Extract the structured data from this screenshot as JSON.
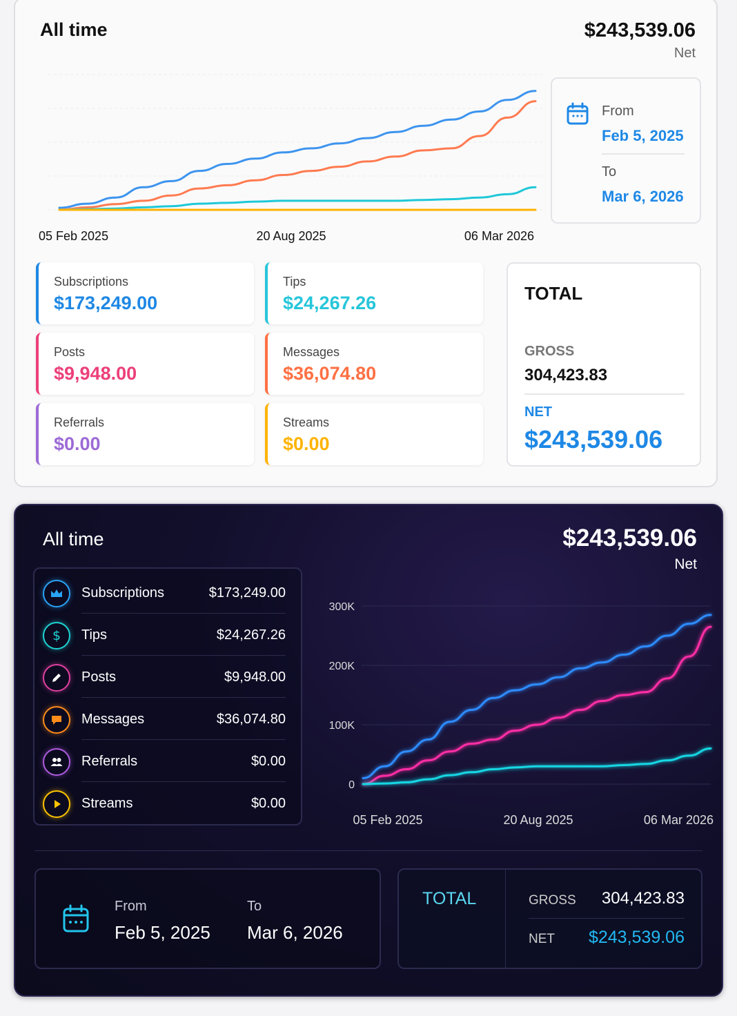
{
  "light": {
    "title": "All time",
    "net_amount": "$243,539.06",
    "net_label": "Net",
    "date_range": {
      "from_label": "From",
      "from_value": "Feb 5, 2025",
      "to_label": "To",
      "to_value": "Mar 6, 2026"
    },
    "stats": [
      {
        "label": "Subscriptions",
        "value": "$173,249.00",
        "color": "#1e88e5"
      },
      {
        "label": "Tips",
        "value": "$24,267.26",
        "color": "#26c6da"
      },
      {
        "label": "Posts",
        "value": "$9,948.00",
        "color": "#ec407a"
      },
      {
        "label": "Messages",
        "value": "$36,074.80",
        "color": "#ff7043"
      },
      {
        "label": "Referrals",
        "value": "$0.00",
        "color": "#9c6ad6"
      },
      {
        "label": "Streams",
        "value": "$0.00",
        "color": "#ffb300"
      }
    ],
    "total": {
      "title": "TOTAL",
      "gross_label": "GROSS",
      "gross_value": "304,423.83",
      "net_label": "NET",
      "net_value": "$243,539.06"
    }
  },
  "dark": {
    "title": "All time",
    "net_amount": "$243,539.06",
    "net_label": "Net",
    "items": [
      {
        "label": "Subscriptions",
        "value": "$173,249.00",
        "icon": "crown-icon",
        "color": "#29a3f5"
      },
      {
        "label": "Tips",
        "value": "$24,267.26",
        "icon": "dollar-icon",
        "color": "#1fd4d4"
      },
      {
        "label": "Posts",
        "value": "$9,948.00",
        "icon": "pencil-icon",
        "color": "#e040a0"
      },
      {
        "label": "Messages",
        "value": "$36,074.80",
        "icon": "chat-icon",
        "color": "#ff8c1a"
      },
      {
        "label": "Referrals",
        "value": "$0.00",
        "icon": "people-icon",
        "color": "#b05ce0"
      },
      {
        "label": "Streams",
        "value": "$0.00",
        "icon": "play-icon",
        "color": "#ffc400"
      }
    ],
    "date_range": {
      "from_label": "From",
      "from_value": "Feb 5, 2025",
      "to_label": "To",
      "to_value": "Mar 6, 2026"
    },
    "total": {
      "title": "TOTAL",
      "gross_label": "GROSS",
      "gross_value": "304,423.83",
      "net_label": "NET",
      "net_value": "$243,539.06"
    }
  },
  "chart_data": [
    {
      "type": "line",
      "xlabels": [
        "05 Feb 2025",
        "20 Aug 2025",
        "06 Mar 2026"
      ],
      "ylim": [
        0,
        330000
      ],
      "grid": true,
      "series": [
        {
          "color": "#3d94ee",
          "values": [
            5000,
            15000,
            30000,
            55000,
            70000,
            95000,
            112000,
            125000,
            140000,
            150000,
            162000,
            175000,
            190000,
            205000,
            220000,
            240000,
            268000,
            290000
          ]
        },
        {
          "color": "#ff7a50",
          "values": [
            0,
            6000,
            14000,
            22000,
            35000,
            52000,
            60000,
            72000,
            85000,
            95000,
            105000,
            118000,
            130000,
            145000,
            150000,
            180000,
            225000,
            265000
          ]
        },
        {
          "color": "#1ec8d8",
          "values": [
            0,
            1500,
            3000,
            6000,
            9000,
            15000,
            17000,
            20000,
            22000,
            22000,
            22000,
            22000,
            22000,
            24000,
            26000,
            30000,
            38000,
            55000
          ]
        },
        {
          "color": "#ffb300",
          "values": [
            0,
            0,
            0,
            0,
            0,
            0,
            0,
            0,
            0,
            0,
            0,
            0,
            0,
            0,
            0,
            0,
            0,
            0
          ]
        }
      ]
    },
    {
      "type": "line",
      "xlabels": [
        "05 Feb 2025",
        "20 Aug 2025",
        "06 Mar 2026"
      ],
      "yticks": [
        "300K",
        "200K",
        "100K",
        "0"
      ],
      "ytick_values": [
        300000,
        200000,
        100000,
        0
      ],
      "ylim": [
        0,
        300000
      ],
      "grid": true,
      "series": [
        {
          "color": "#2f8cff",
          "values": [
            10000,
            30000,
            55000,
            75000,
            105000,
            125000,
            145000,
            158000,
            168000,
            180000,
            195000,
            205000,
            218000,
            232000,
            250000,
            270000,
            285000
          ]
        },
        {
          "color": "#ff2fa6",
          "values": [
            0,
            14000,
            25000,
            40000,
            55000,
            68000,
            75000,
            90000,
            100000,
            112000,
            125000,
            140000,
            150000,
            155000,
            178000,
            215000,
            265000
          ]
        },
        {
          "color": "#13d7e4",
          "values": [
            0,
            1000,
            3000,
            8000,
            15000,
            20000,
            25000,
            28000,
            30000,
            30000,
            30000,
            30000,
            32000,
            34000,
            40000,
            48000,
            60000
          ]
        },
        {
          "color": "#ffb300",
          "values": [
            0,
            0,
            0,
            0,
            0,
            0,
            0,
            0,
            0,
            0,
            0,
            0,
            0,
            0,
            0,
            0,
            0
          ]
        }
      ]
    }
  ]
}
